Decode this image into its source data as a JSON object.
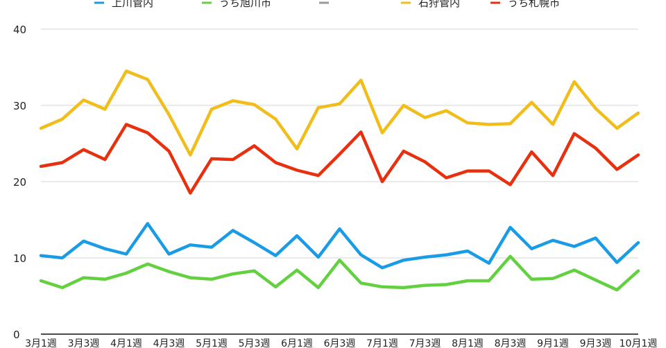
{
  "chart_data": {
    "type": "line",
    "title": "",
    "xlabel": "",
    "ylabel": "",
    "ylim": [
      0,
      40
    ],
    "yticks": [
      0,
      10,
      20,
      30,
      40
    ],
    "grid": true,
    "legend_placement": "top",
    "categories": [
      "3月1週",
      "3月2週",
      "3月3週",
      "3月4週",
      "4月1週",
      "4月2週",
      "4月3週",
      "4月4週",
      "5月1週",
      "5月2週",
      "5月3週",
      "5月4週",
      "6月1週",
      "6月2週",
      "6月3週",
      "6月4週",
      "7月1週",
      "7月2週",
      "7月3週",
      "7月4週",
      "8月1週",
      "8月2週",
      "8月3週",
      "8月4週",
      "9月1週",
      "9月2週",
      "9月3週",
      "9月4週",
      "10月1週"
    ],
    "x_tick_labels": [
      "3月1週",
      "3月3週",
      "4月1週",
      "4月3週",
      "5月1週",
      "5月3週",
      "6月1週",
      "6月3週",
      "7月1週",
      "7月3週",
      "8月1週",
      "8月3週",
      "9月1週",
      "9月3週",
      "10月1週"
    ],
    "legend": [
      {
        "name": "上川管内",
        "color": "#1a9be6"
      },
      {
        "name": "うち旭川市",
        "color": "#62d03f"
      },
      {
        "name": "",
        "color": "#999999"
      },
      {
        "name": "石狩管内",
        "color": "#f0bd1b"
      },
      {
        "name": "うち札幌市",
        "color": "#e8300f"
      }
    ],
    "series": [
      {
        "name": "石狩管内",
        "color": "#f0bd1b",
        "values": [
          27.0,
          28.2,
          30.7,
          29.5,
          34.5,
          33.4,
          28.8,
          23.5,
          29.5,
          30.6,
          30.1,
          28.2,
          24.3,
          29.7,
          30.2,
          33.3,
          26.4,
          30.0,
          28.4,
          29.3,
          27.7,
          27.5,
          27.6,
          30.4,
          27.5,
          33.1,
          29.6,
          27.0,
          29.0
        ]
      },
      {
        "name": "うち札幌市",
        "color": "#e8300f",
        "values": [
          22.0,
          22.5,
          24.2,
          22.9,
          27.5,
          26.4,
          24.0,
          18.5,
          23.0,
          22.9,
          24.7,
          22.5,
          21.5,
          20.8,
          23.6,
          26.5,
          20.0,
          24.0,
          22.6,
          20.5,
          21.4,
          21.4,
          19.6,
          23.9,
          20.8,
          26.3,
          24.4,
          21.6,
          23.5
        ]
      },
      {
        "name": "上川管内",
        "color": "#1a9be6",
        "values": [
          10.3,
          10.0,
          12.2,
          11.2,
          10.5,
          14.5,
          10.5,
          11.7,
          11.4,
          13.6,
          12.0,
          10.3,
          12.9,
          10.1,
          13.8,
          10.4,
          8.7,
          9.7,
          10.1,
          10.4,
          10.9,
          9.3,
          14.0,
          11.2,
          12.3,
          11.5,
          12.6,
          9.4,
          12.0
        ]
      },
      {
        "name": "うち旭川市",
        "color": "#62d03f",
        "values": [
          7.0,
          6.1,
          7.4,
          7.2,
          8.0,
          9.2,
          8.2,
          7.4,
          7.2,
          7.9,
          8.3,
          6.2,
          8.4,
          6.1,
          9.7,
          6.7,
          6.2,
          6.1,
          6.4,
          6.5,
          7.0,
          7.0,
          10.2,
          7.2,
          7.3,
          8.4,
          7.1,
          5.8,
          8.3
        ]
      }
    ]
  }
}
